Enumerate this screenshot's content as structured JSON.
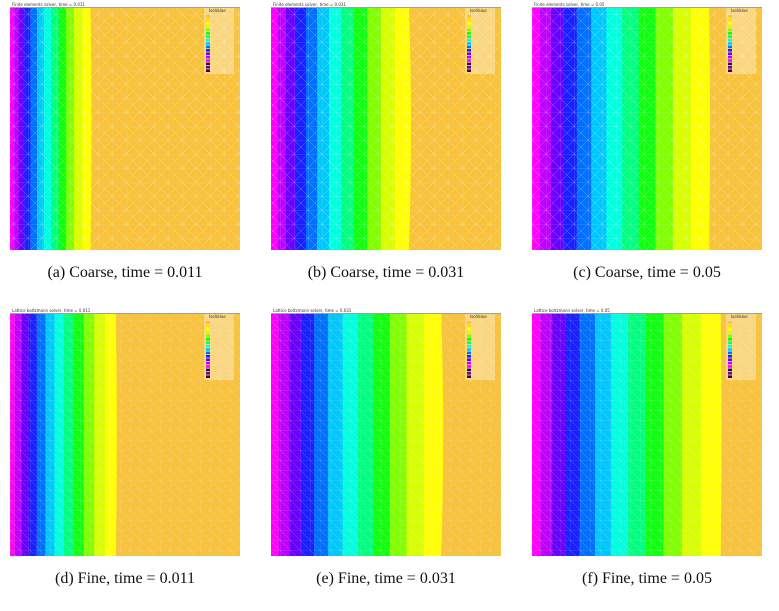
{
  "panels": [
    {
      "title": "Finite elements solver, time = 0.011",
      "legend_title": "IsoValue",
      "caption": "(a) Coarse, time = 0.011"
    },
    {
      "title": "Finite elements solver, time = 0.031",
      "legend_title": "IsoValue",
      "caption": "(b) Coarse, time = 0.031"
    },
    {
      "title": "Finite elements solver, time = 0.05",
      "legend_title": "IsoValue",
      "caption": "(c) Coarse, time = 0.05"
    },
    {
      "title": "Lattice boltzmann solver, time = 0.011",
      "legend_title": "IsoValue",
      "caption": "(d) Fine, time = 0.011"
    },
    {
      "title": "Lattice boltzmann solver, time = 0.031",
      "legend_title": "IsoValue",
      "caption": "(e) Fine, time = 0.031"
    },
    {
      "title": "Lattice boltzmann solver, time = 0.05",
      "legend_title": "IsoValue",
      "caption": "(f) Fine, time = 0.05"
    }
  ]
}
